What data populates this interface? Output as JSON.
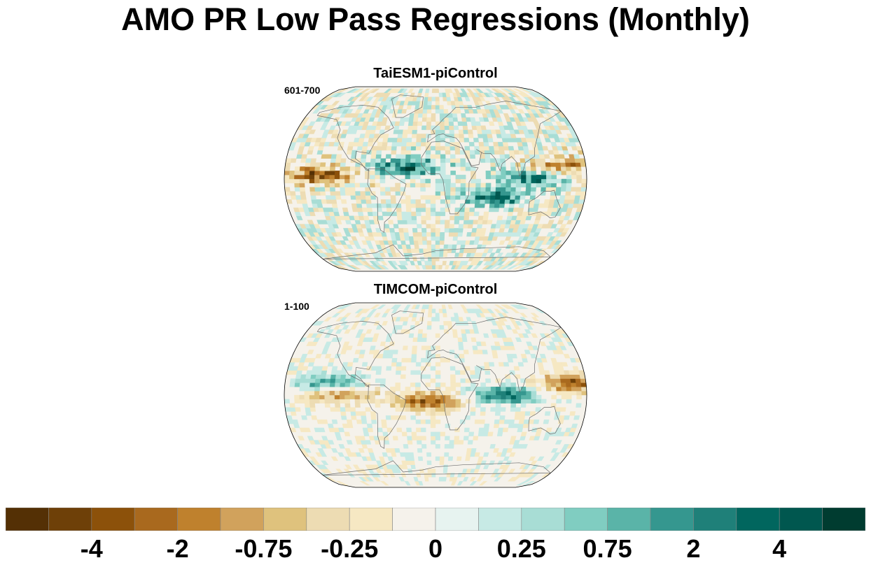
{
  "title": "AMO PR Low Pass Regressions (Monthly)",
  "colors": {
    "levels": [
      "#543005",
      "#6e4008",
      "#8c510a",
      "#a9691e",
      "#bf812d",
      "#d1a25c",
      "#dfc27d",
      "#eddcb3",
      "#f6e8c3",
      "#f5f2eb",
      "#e7f3f0",
      "#c7eae5",
      "#a8ddd5",
      "#80cdc1",
      "#5ab4a8",
      "#35978f",
      "#1f8079",
      "#01665e",
      "#00574f",
      "#003c30"
    ],
    "coast": "#6b6b6b",
    "outline": "#000000"
  },
  "chart_data": [
    {
      "type": "heatmap",
      "title": "TaiESM1-piControl",
      "period": "601-700",
      "projection": "robinson",
      "dominant_features": [
        {
          "region": "equatorial Pacific",
          "lat": 2,
          "lon": -140,
          "sign": "negative"
        },
        {
          "region": "tropical Atlantic ITCZ",
          "lat": 10,
          "lon": -35,
          "sign": "positive"
        },
        {
          "region": "Maritime Continent",
          "lat": 0,
          "lon": 115,
          "sign": "positive"
        },
        {
          "region": "western Pacific warm pool",
          "lat": 10,
          "lon": 145,
          "sign": "negative"
        },
        {
          "region": "southern Indian Ocean",
          "lat": -20,
          "lon": 70,
          "sign": "positive"
        }
      ]
    },
    {
      "type": "heatmap",
      "title": "TIMCOM-piControl",
      "period": "1-100",
      "projection": "robinson",
      "dominant_features": [
        {
          "region": "eastern Pacific ITCZ",
          "lat": 8,
          "lon": -130,
          "sign": "positive"
        },
        {
          "region": "equatorial Pacific",
          "lat": 0,
          "lon": -120,
          "sign": "negative"
        },
        {
          "region": "western Pacific",
          "lat": 10,
          "lon": 160,
          "sign": "negative"
        },
        {
          "region": "Indian Ocean equator",
          "lat": -2,
          "lon": 80,
          "sign": "positive"
        },
        {
          "region": "tropical South Atlantic",
          "lat": -8,
          "lon": -10,
          "sign": "negative"
        }
      ]
    }
  ],
  "colorbar": {
    "boxes": 20,
    "tick_labels": [
      "-4",
      "-2",
      "-0.75",
      "-0.25",
      "0",
      "0.25",
      "0.75",
      "2",
      "4"
    ],
    "tick_box_positions": [
      2,
      4,
      6,
      8,
      10,
      12,
      14,
      16,
      18
    ]
  }
}
